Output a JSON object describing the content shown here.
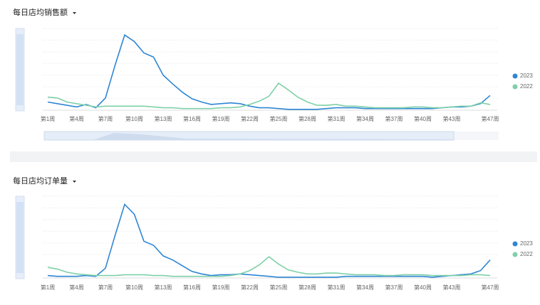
{
  "chart_data": [
    {
      "type": "line",
      "title": "每日店均销售额",
      "categories": [
        "第1周",
        null,
        null,
        "第4周",
        null,
        null,
        "第7周",
        null,
        null,
        "第10周",
        null,
        null,
        "第13周",
        null,
        null,
        "第16周",
        null,
        null,
        "第19周",
        null,
        null,
        "第22周",
        null,
        null,
        "第25周",
        null,
        null,
        "第28周",
        null,
        null,
        "第31周",
        null,
        null,
        "第34周",
        null,
        null,
        "第37周",
        null,
        null,
        "第40周",
        null,
        null,
        "第43周",
        null,
        null,
        null,
        "第47周"
      ],
      "series": [
        {
          "name": "2023",
          "color": "#2e86d4",
          "values": [
            10,
            8,
            6,
            4,
            7,
            3,
            15,
            55,
            92,
            84,
            70,
            65,
            43,
            32,
            22,
            14,
            10,
            7,
            8,
            9,
            8,
            5,
            3,
            3,
            2,
            1,
            1,
            1,
            1,
            2,
            3,
            3,
            3,
            2,
            2,
            2,
            2,
            2,
            2,
            2,
            2,
            3,
            4,
            4,
            5,
            8,
            18
          ]
        },
        {
          "name": "2022",
          "color": "#7fd0a8",
          "values": [
            16,
            15,
            10,
            8,
            6,
            4,
            5,
            5,
            5,
            5,
            5,
            4,
            3,
            3,
            2,
            2,
            2,
            2,
            3,
            3,
            4,
            7,
            11,
            17,
            33,
            25,
            16,
            10,
            6,
            6,
            7,
            5,
            5,
            4,
            3,
            3,
            3,
            3,
            4,
            4,
            3,
            3,
            4,
            5,
            5,
            9,
            7
          ]
        }
      ],
      "ylim": [
        0,
        100
      ],
      "legend": "right"
    },
    {
      "type": "line",
      "title": "每日店均订单量",
      "categories": [
        "第1周",
        null,
        null,
        "第4周",
        null,
        null,
        "第7周",
        null,
        null,
        "第10周",
        null,
        null,
        "第13周",
        null,
        null,
        "第16周",
        null,
        null,
        "第19周",
        null,
        null,
        "第22周",
        null,
        null,
        "第25周",
        null,
        null,
        "第28周",
        null,
        null,
        "第31周",
        null,
        null,
        "第34周",
        null,
        null,
        "第37周",
        null,
        null,
        "第40周",
        null,
        null,
        "第43周",
        null,
        null,
        null,
        "第47周"
      ],
      "series": [
        {
          "name": "2023",
          "color": "#2e86d4",
          "values": [
            3,
            2,
            2,
            2,
            3,
            2,
            12,
            52,
            90,
            78,
            45,
            40,
            27,
            22,
            15,
            8,
            5,
            3,
            4,
            4,
            5,
            4,
            3,
            2,
            1,
            1,
            1,
            1,
            1,
            1,
            1,
            2,
            2,
            2,
            2,
            2,
            2,
            2,
            2,
            2,
            1,
            2,
            3,
            4,
            5,
            9,
            22
          ]
        },
        {
          "name": "2022",
          "color": "#7fd0a8",
          "values": [
            13,
            11,
            7,
            5,
            4,
            3,
            3,
            3,
            4,
            4,
            4,
            3,
            3,
            2,
            2,
            2,
            2,
            2,
            2,
            3,
            5,
            9,
            16,
            26,
            17,
            10,
            7,
            5,
            5,
            6,
            6,
            5,
            4,
            4,
            4,
            3,
            3,
            4,
            4,
            4,
            3,
            3,
            3,
            3,
            4,
            4,
            3
          ]
        }
      ],
      "ylim": [
        0,
        100
      ],
      "legend": "right"
    }
  ]
}
